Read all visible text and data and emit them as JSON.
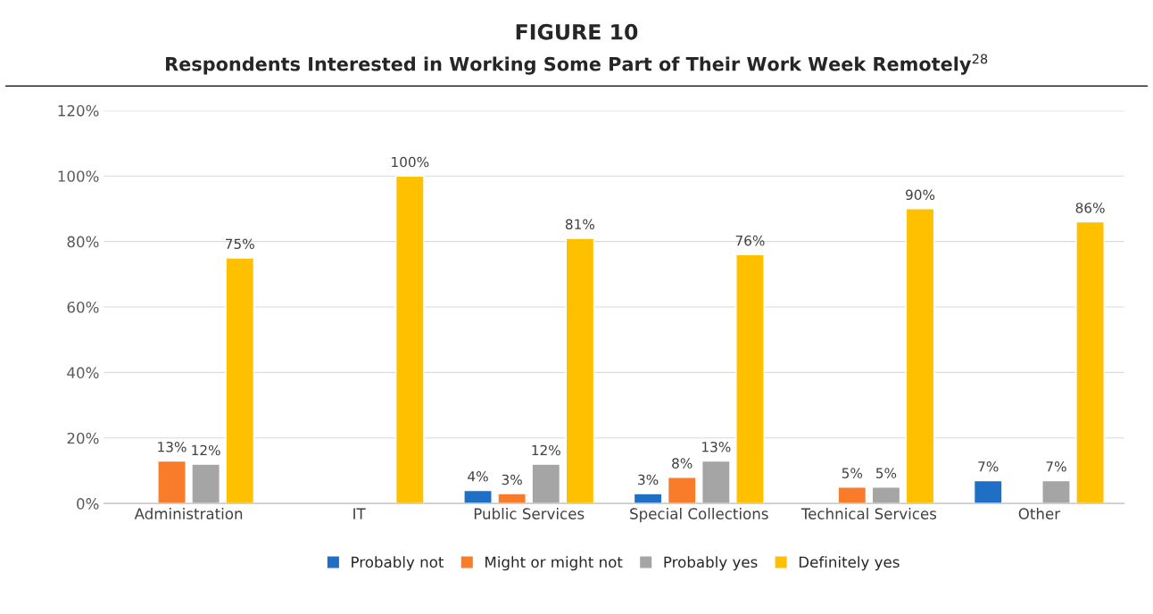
{
  "chart_data": {
    "type": "bar",
    "title": "FIGURE 10",
    "subtitle": "Respondents Interested in Working Some Part of Their Work Week Remotely$^{28}$",
    "categories": [
      "Administration",
      "IT",
      "Public Services",
      "Special Collections",
      "Technical Services",
      "Other"
    ],
    "series": [
      {
        "name": "Probably not",
        "color": "#1f6fc5",
        "values": [
          null,
          null,
          4,
          3,
          null,
          7
        ],
        "value_labels": [
          null,
          null,
          "4%",
          "3%",
          null,
          "7%"
        ]
      },
      {
        "name": "Might or might not",
        "color": "#f97c2b",
        "values": [
          13,
          null,
          3,
          8,
          5,
          null
        ],
        "value_labels": [
          "13%",
          null,
          "3%",
          "8%",
          "5%",
          null
        ]
      },
      {
        "name": "Probably yes",
        "color": "#a5a5a5",
        "values": [
          12,
          null,
          12,
          13,
          5,
          7
        ],
        "value_labels": [
          "12%",
          null,
          "12%",
          "13%",
          "5%",
          "7%"
        ]
      },
      {
        "name": "Definitely yes",
        "color": "#ffc000",
        "values": [
          75,
          100,
          81,
          76,
          90,
          86
        ],
        "value_labels": [
          "75%",
          "100%",
          "81%",
          "76%",
          "90%",
          "86%"
        ]
      }
    ],
    "ylim": [
      0,
      120
    ],
    "yticks": [
      {
        "value": 0,
        "label": "0%"
      },
      {
        "value": 20,
        "label": "20%"
      },
      {
        "value": 40,
        "label": "40%"
      },
      {
        "value": 60,
        "label": "60%"
      },
      {
        "value": 80,
        "label": "80%"
      },
      {
        "value": 100,
        "label": "100%"
      },
      {
        "value": 120,
        "label": "120%"
      }
    ],
    "grid": "y",
    "legend": "bottom"
  }
}
